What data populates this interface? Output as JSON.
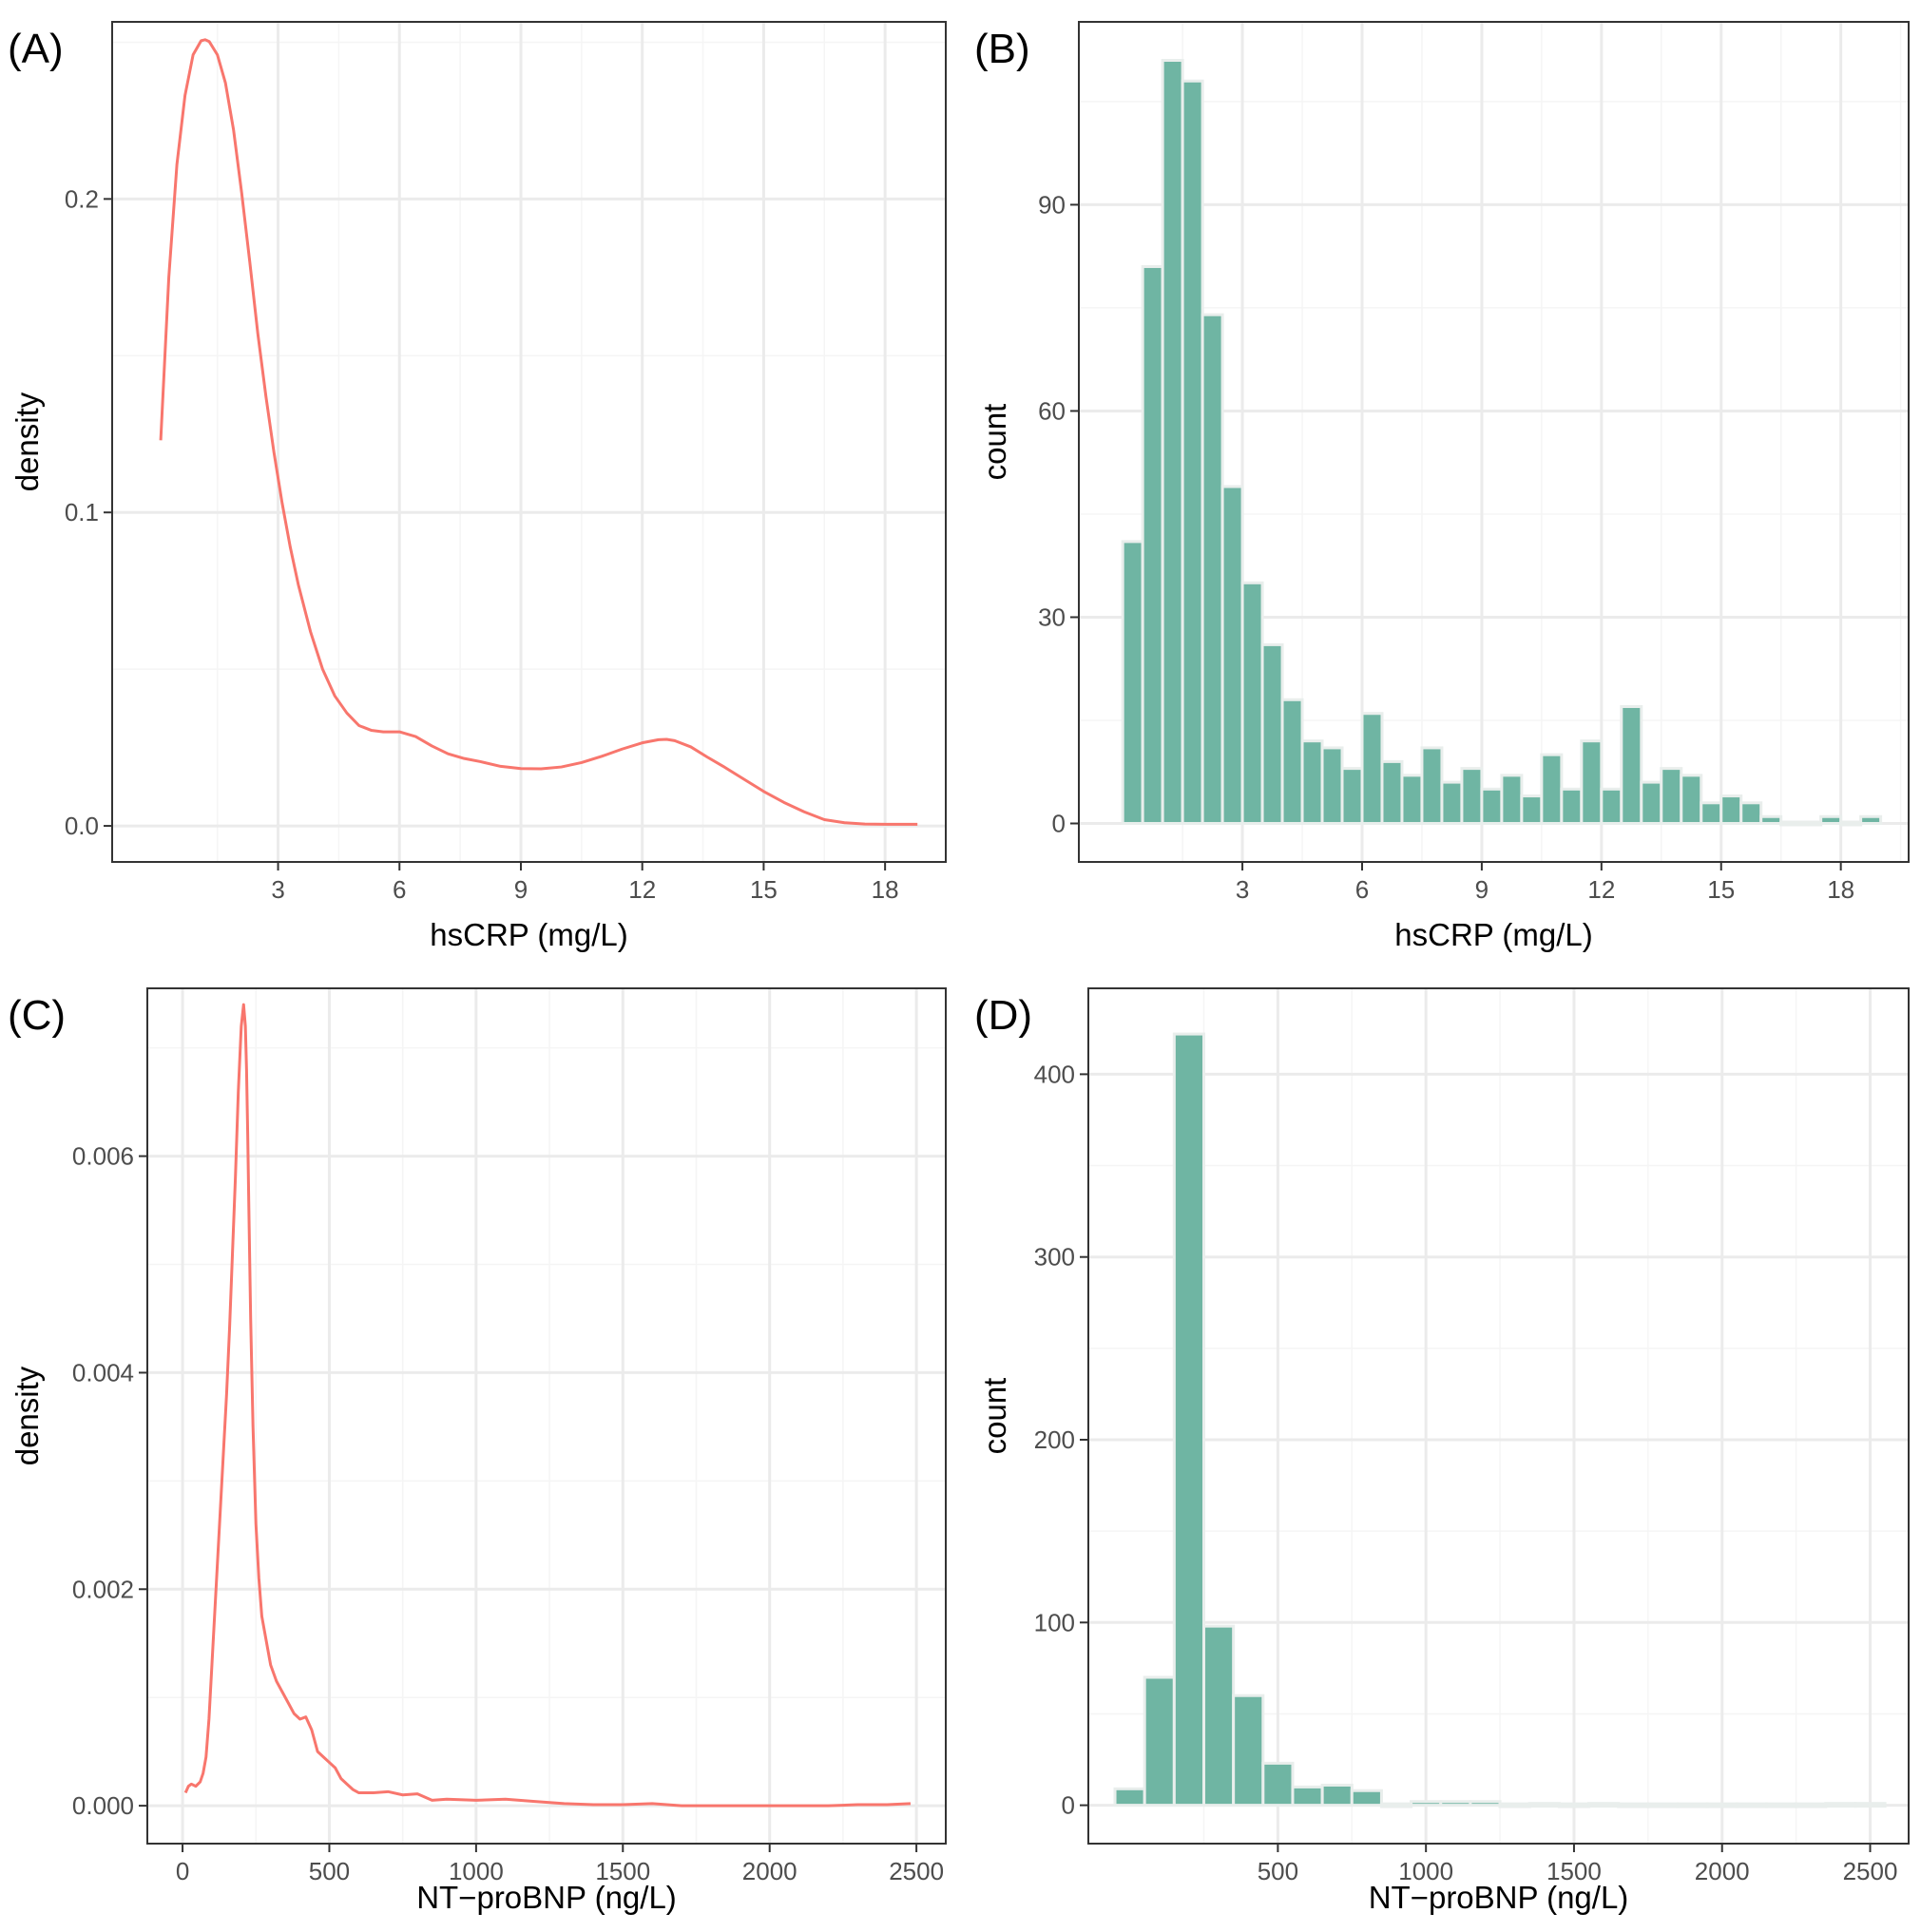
{
  "figure": {
    "style": {
      "density_color": "#f8766d",
      "bar_fill": "#6fb5a3",
      "bar_edge": "#e9eeec",
      "grid_major": "#ebebeb",
      "grid_minor": "#f5f5f5",
      "panel_border": "#333333"
    }
  },
  "chart_data": [
    {
      "panel": "(A)",
      "type": "line",
      "xlabel": "hsCRP (mg/L)",
      "ylabel": "density",
      "xlim": [
        -1.1,
        19.5
      ],
      "ylim": [
        -0.0115,
        0.2565
      ],
      "xticks": [
        3,
        6,
        9,
        12,
        15,
        18
      ],
      "yticks": [
        0.0,
        0.1,
        0.2
      ],
      "ytick_labels": [
        "0.0",
        "0.1",
        "0.2"
      ],
      "series": [
        {
          "name": "density",
          "x": [
            0.1,
            0.3,
            0.5,
            0.7,
            0.9,
            1.1,
            1.2,
            1.3,
            1.5,
            1.7,
            1.9,
            2.1,
            2.3,
            2.5,
            2.7,
            2.9,
            3.1,
            3.3,
            3.5,
            3.8,
            4.1,
            4.4,
            4.7,
            5.0,
            5.3,
            5.6,
            6.0,
            6.4,
            6.8,
            7.2,
            7.6,
            8.0,
            8.5,
            9.0,
            9.5,
            10.0,
            10.5,
            11.0,
            11.5,
            12.0,
            12.4,
            12.6,
            12.8,
            13.2,
            13.6,
            14.0,
            14.5,
            15.0,
            15.5,
            16.0,
            16.5,
            17.0,
            17.5,
            18.0,
            18.5,
            18.8
          ],
          "y": [
            0.123,
            0.175,
            0.211,
            0.233,
            0.246,
            0.2505,
            0.2508,
            0.2502,
            0.246,
            0.237,
            0.222,
            0.202,
            0.18,
            0.157,
            0.137,
            0.119,
            0.103,
            0.089,
            0.077,
            0.062,
            0.05,
            0.0415,
            0.036,
            0.032,
            0.0305,
            0.03,
            0.03,
            0.0285,
            0.0255,
            0.023,
            0.0215,
            0.0205,
            0.019,
            0.0183,
            0.0182,
            0.0188,
            0.0202,
            0.0222,
            0.0245,
            0.0265,
            0.0275,
            0.0276,
            0.0272,
            0.0252,
            0.022,
            0.019,
            0.015,
            0.011,
            0.0075,
            0.0045,
            0.002,
            0.001,
            0.0006,
            0.0005,
            0.0005,
            0.0005
          ]
        }
      ]
    },
    {
      "panel": "(B)",
      "type": "bar",
      "xlabel": "hsCRP (mg/L)",
      "ylabel": "count",
      "xlim": [
        -1.1,
        19.7
      ],
      "ylim": [
        -5.6,
        116.6
      ],
      "xticks": [
        3,
        6,
        9,
        12,
        15,
        18
      ],
      "yticks": [
        0,
        30,
        60,
        90
      ],
      "bin_width": 0.5,
      "bin_centers": [
        0.25,
        0.75,
        1.25,
        1.75,
        2.25,
        2.75,
        3.25,
        3.75,
        4.25,
        4.75,
        5.25,
        5.75,
        6.25,
        6.75,
        7.25,
        7.75,
        8.25,
        8.75,
        9.25,
        9.75,
        10.25,
        10.75,
        11.25,
        11.75,
        12.25,
        12.75,
        13.25,
        13.75,
        14.25,
        14.75,
        15.25,
        15.75,
        16.25,
        16.75,
        17.25,
        17.75,
        18.25,
        18.75
      ],
      "values": [
        41,
        81,
        111,
        108,
        74,
        49,
        35,
        26,
        18,
        12,
        11,
        8,
        16,
        9,
        7,
        11,
        6,
        8,
        5,
        7,
        4,
        10,
        5,
        12,
        5,
        17,
        6,
        8,
        7,
        3,
        4,
        3,
        1,
        0,
        0,
        1,
        0,
        1
      ]
    },
    {
      "panel": "(C)",
      "type": "line",
      "xlabel": "NT−proBNP (ng/L)",
      "ylabel": "density",
      "xlim": [
        -120,
        2600
      ],
      "ylim": [
        -0.00035,
        0.00755
      ],
      "xticks": [
        0,
        500,
        1000,
        1500,
        2000,
        2500
      ],
      "yticks": [
        0.0,
        0.002,
        0.004,
        0.006
      ],
      "ytick_labels": [
        "0.000",
        "0.002",
        "0.004",
        "0.006"
      ],
      "series": [
        {
          "name": "density",
          "x": [
            10,
            20,
            30,
            45,
            60,
            70,
            80,
            90,
            100,
            110,
            120,
            130,
            140,
            150,
            160,
            170,
            180,
            190,
            200,
            208,
            214,
            218,
            222,
            226,
            232,
            240,
            250,
            260,
            270,
            280,
            290,
            300,
            320,
            340,
            360,
            380,
            400,
            420,
            440,
            460,
            480,
            500,
            520,
            540,
            560,
            580,
            600,
            650,
            700,
            750,
            800,
            850,
            900,
            1000,
            1100,
            1200,
            1300,
            1400,
            1500,
            1600,
            1700,
            1800,
            1900,
            2000,
            2100,
            2200,
            2300,
            2400,
            2480
          ],
          "y": [
            0.00012,
            0.00018,
            0.0002,
            0.00018,
            0.00022,
            0.0003,
            0.00045,
            0.0008,
            0.0013,
            0.0018,
            0.0023,
            0.0028,
            0.0033,
            0.0038,
            0.0044,
            0.0051,
            0.0058,
            0.0066,
            0.0072,
            0.0074,
            0.0072,
            0.0068,
            0.0062,
            0.0055,
            0.0045,
            0.0035,
            0.0026,
            0.0021,
            0.00175,
            0.0016,
            0.00145,
            0.0013,
            0.00115,
            0.00105,
            0.00095,
            0.00085,
            0.0008,
            0.00082,
            0.0007,
            0.0005,
            0.00045,
            0.0004,
            0.00035,
            0.00025,
            0.0002,
            0.00015,
            0.00012,
            0.00012,
            0.00013,
            0.0001,
            0.00011,
            5e-05,
            6e-05,
            5e-05,
            6e-05,
            4e-05,
            2e-05,
            1e-05,
            1e-05,
            2e-05,
            0.0,
            0.0,
            0.0,
            0.0,
            0.0,
            0.0,
            1e-05,
            1e-05,
            2e-05
          ]
        }
      ]
    },
    {
      "panel": "(D)",
      "type": "bar",
      "xlabel": "NT−proBNP (ng/L)",
      "ylabel": "count",
      "xlim": [
        -140,
        2630
      ],
      "ylim": [
        -21,
        447
      ],
      "xticks": [
        500,
        1000,
        1500,
        2000,
        2500
      ],
      "yticks": [
        0,
        100,
        200,
        300,
        400
      ],
      "bin_width": 100,
      "bin_centers": [
        0,
        100,
        200,
        300,
        400,
        500,
        600,
        700,
        800,
        900,
        1000,
        1100,
        1200,
        1300,
        1400,
        1500,
        1600,
        1700,
        1800,
        1900,
        2000,
        2100,
        2200,
        2300,
        2400,
        2500
      ],
      "values": [
        9,
        70,
        422,
        98,
        60,
        23,
        10,
        11,
        8,
        0,
        2,
        2,
        2,
        0,
        1,
        0,
        1,
        0,
        0,
        0,
        0,
        0,
        0,
        0,
        1,
        1
      ]
    }
  ]
}
